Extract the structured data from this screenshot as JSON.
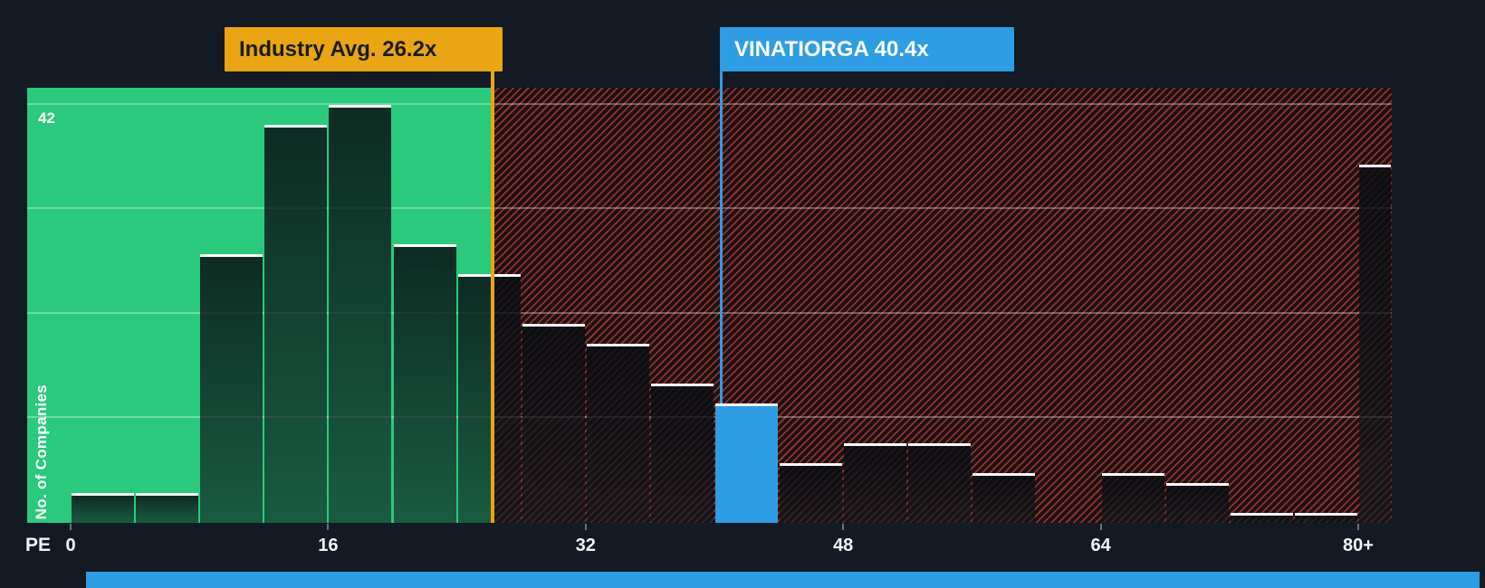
{
  "chart_data": {
    "type": "bar",
    "title": "",
    "ylabel": "No. of Companies",
    "xlabel_prefix": "PE",
    "y_top_label": "42",
    "ylim": [
      0,
      43.7
    ],
    "gridlines": [
      10.5,
      21,
      31.5,
      42
    ],
    "grid_on": true,
    "bucket_width": 4,
    "x_ticks": [
      {
        "pe": 0,
        "label": "0"
      },
      {
        "pe": 16,
        "label": "16"
      },
      {
        "pe": 32,
        "label": "32"
      },
      {
        "pe": 48,
        "label": "48"
      },
      {
        "pe": 64,
        "label": "64"
      },
      {
        "pe": 80,
        "label": "80+"
      }
    ],
    "bars": [
      {
        "x": 0,
        "count": 3
      },
      {
        "x": 4,
        "count": 3
      },
      {
        "x": 8,
        "count": 27
      },
      {
        "x": 12,
        "count": 40
      },
      {
        "x": 16,
        "count": 42
      },
      {
        "x": 20,
        "count": 28
      },
      {
        "x": 24,
        "count": 25
      },
      {
        "x": 28,
        "count": 20
      },
      {
        "x": 32,
        "count": 18
      },
      {
        "x": 36,
        "count": 14
      },
      {
        "x": 40,
        "count": 12,
        "highlight": true
      },
      {
        "x": 44,
        "count": 6
      },
      {
        "x": 48,
        "count": 8
      },
      {
        "x": 52,
        "count": 8
      },
      {
        "x": 56,
        "count": 5
      },
      {
        "x": 60,
        "count": 0
      },
      {
        "x": 64,
        "count": 5
      },
      {
        "x": 68,
        "count": 4
      },
      {
        "x": 72,
        "count": 1
      },
      {
        "x": 76,
        "count": 1
      },
      {
        "x": 80,
        "count": 36,
        "w": 2.1
      }
    ],
    "annotations": {
      "industry_avg": {
        "label": "Industry Avg. 26.2x",
        "value": 26.2
      },
      "company": {
        "label": "VINATIORGA 40.4x",
        "value": 40.4
      }
    },
    "legend": "none"
  },
  "colors": {
    "background": "#131a24",
    "green_zone": "#2bc97c",
    "hatch_base": "#1d1016",
    "hatch_line": "rgba(237,83,57,0.55)",
    "grid_line": "rgba(255,255,255,0.32)",
    "bar_fill_top": "rgba(8,13,18,0.84)",
    "bar_fill_bottom": "rgba(14,24,28,0.62)",
    "bar_top_border": "#fafafa",
    "highlight_blue": "#2e9de4",
    "industry_gold": "#e9a512",
    "callout_text_dark": "#181d24",
    "text_white": "#f2f4f6"
  }
}
